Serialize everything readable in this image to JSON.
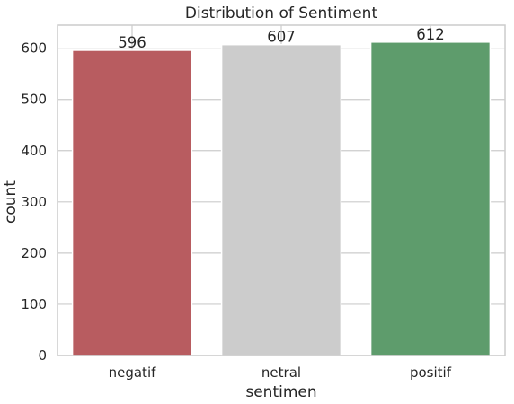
{
  "chart_data": {
    "type": "bar",
    "title": "Distribution of Sentiment",
    "xlabel": "sentimen",
    "ylabel": "count",
    "categories": [
      "negatif",
      "netral",
      "positif"
    ],
    "values": [
      596,
      607,
      612
    ],
    "data_labels": [
      "596",
      "607",
      "612"
    ],
    "colors": [
      "#b85c60",
      "#cccccc",
      "#5e9c6c"
    ],
    "ylim": [
      0,
      645
    ],
    "yticks": [
      0,
      100,
      200,
      300,
      400,
      500,
      600
    ],
    "ytick_labels": [
      "0",
      "100",
      "200",
      "300",
      "400",
      "500",
      "600"
    ],
    "grid": true,
    "style": "whitegrid"
  }
}
